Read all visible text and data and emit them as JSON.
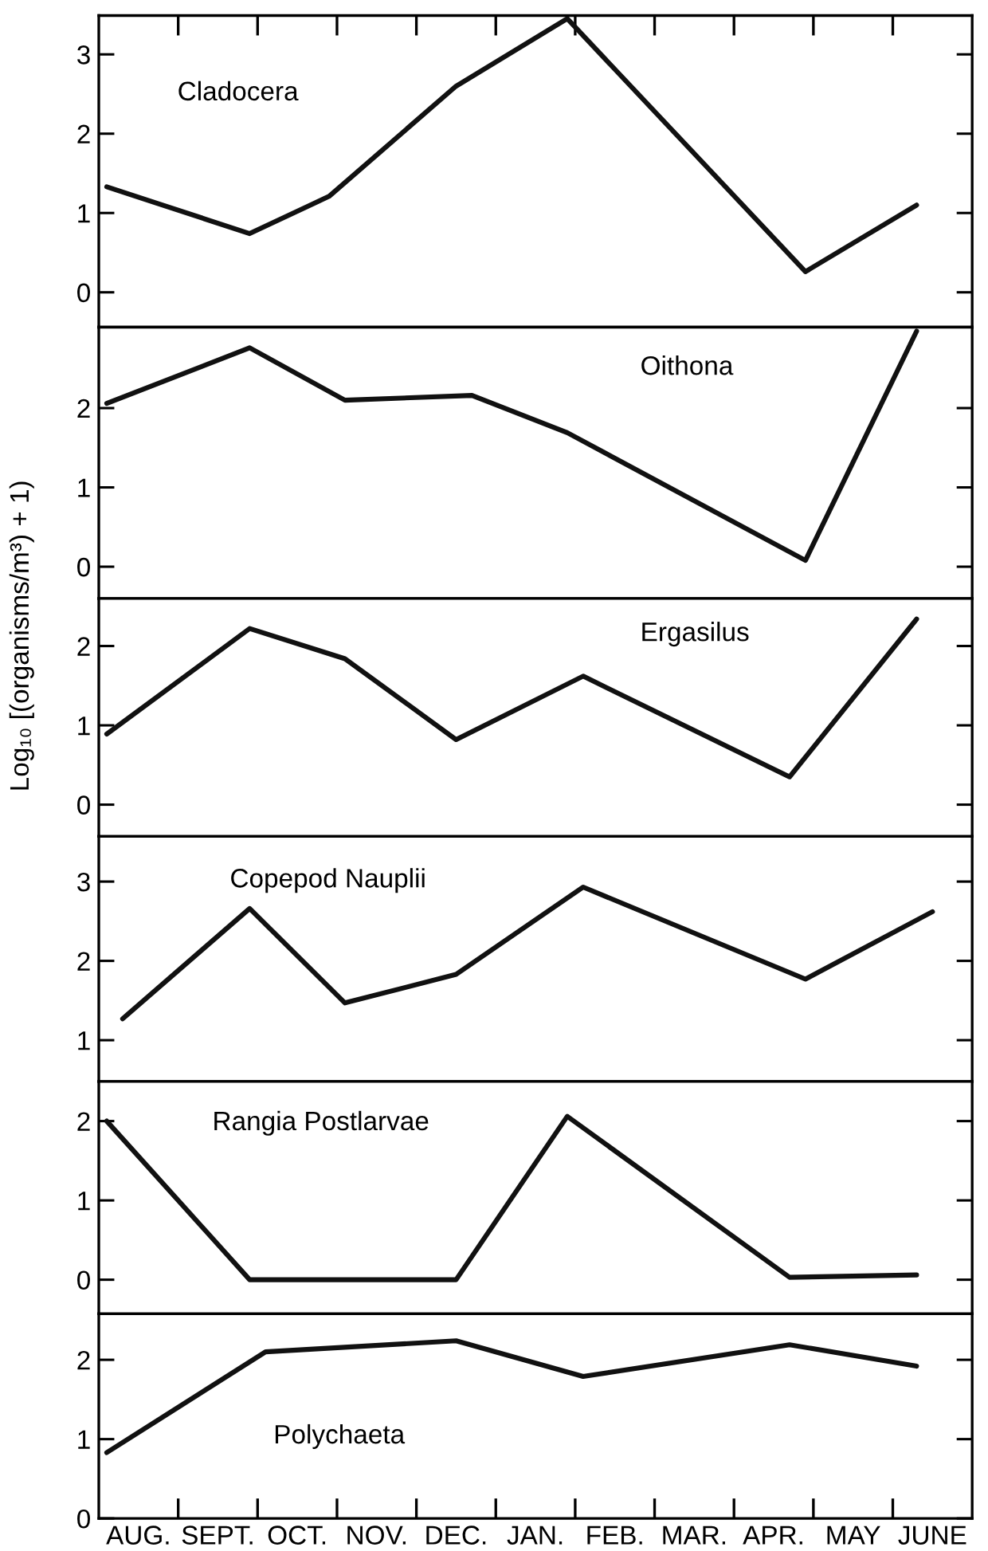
{
  "chart_data": [
    {
      "type": "line",
      "title": "Cladocera",
      "ylim": [
        -0.44,
        3.49
      ],
      "yticks": [
        0,
        1,
        2,
        3
      ],
      "tick_labels": "y",
      "color": "#111111",
      "values": [
        1.33,
        null,
        null,
        null,
        null,
        null,
        null,
        null,
        null,
        0.74,
        null,
        null,
        null,
        null,
        1.21,
        null,
        null,
        null,
        null,
        null,
        null,
        null,
        2.6,
        null,
        null,
        null,
        null,
        null,
        null,
        3.45,
        null,
        null,
        null,
        null,
        null,
        null,
        null,
        null,
        null,
        null,
        null,
        null,
        null,
        null,
        0.26,
        null,
        null,
        null,
        null,
        null,
        null,
        1.1,
        null,
        null,
        null
      ]
    },
    {
      "type": "line",
      "title": "Oithona",
      "ylim": [
        -0.4,
        3.02
      ],
      "yticks": [
        0,
        1,
        2
      ],
      "tick_labels": "y",
      "color": "#111111",
      "values": [
        2.06,
        null,
        null,
        null,
        null,
        null,
        null,
        null,
        null,
        2.76,
        null,
        null,
        null,
        null,
        null,
        2.1,
        null,
        null,
        null,
        null,
        null,
        null,
        null,
        2.16,
        null,
        null,
        null,
        null,
        null,
        1.69,
        null,
        null,
        null,
        null,
        null,
        null,
        null,
        null,
        null,
        null,
        null,
        null,
        null,
        null,
        0.08,
        null,
        null,
        null,
        null,
        null,
        null,
        2.97,
        null,
        null,
        null
      ]
    },
    {
      "type": "line",
      "title": "Ergasilus",
      "ylim": [
        -0.4,
        2.6
      ],
      "yticks": [
        0,
        1,
        2
      ],
      "tick_labels": "y",
      "color": "#111111",
      "ylabel": "Log₁₀ [(organisms/m³) + 1)",
      "values": [
        0.89,
        null,
        null,
        null,
        null,
        null,
        null,
        null,
        null,
        2.22,
        null,
        null,
        null,
        null,
        null,
        1.84,
        null,
        null,
        null,
        null,
        null,
        null,
        0.82,
        null,
        null,
        null,
        null,
        null,
        null,
        null,
        1.62,
        null,
        null,
        null,
        null,
        null,
        null,
        null,
        null,
        null,
        null,
        null,
        null,
        0.35,
        null,
        null,
        null,
        null,
        null,
        null,
        null,
        2.34,
        null,
        null,
        null
      ]
    },
    {
      "type": "line",
      "title": "Copepod Nauplii",
      "ylim": [
        0.48,
        3.57
      ],
      "yticks": [
        1,
        2,
        3
      ],
      "tick_labels": "y",
      "color": "#111111",
      "values": [
        null,
        1.27,
        null,
        null,
        null,
        null,
        null,
        null,
        null,
        2.66,
        null,
        null,
        null,
        null,
        null,
        1.47,
        null,
        null,
        null,
        null,
        null,
        null,
        1.83,
        null,
        null,
        null,
        null,
        null,
        null,
        null,
        2.93,
        null,
        null,
        null,
        null,
        null,
        null,
        null,
        null,
        null,
        null,
        null,
        null,
        null,
        1.77,
        null,
        null,
        null,
        null,
        null,
        null,
        null,
        2.62,
        null,
        null
      ]
    },
    {
      "type": "line",
      "title": "Rangia Postlarvae",
      "ylim": [
        -0.43,
        2.5
      ],
      "yticks": [
        0,
        1,
        2
      ],
      "tick_labels": "y",
      "color": "#111111",
      "values": [
        2.0,
        null,
        null,
        null,
        null,
        null,
        null,
        null,
        null,
        0.0,
        null,
        null,
        null,
        null,
        null,
        null,
        null,
        null,
        null,
        null,
        null,
        null,
        0.0,
        null,
        null,
        null,
        null,
        null,
        null,
        2.06,
        null,
        null,
        null,
        null,
        null,
        null,
        null,
        null,
        null,
        null,
        null,
        null,
        null,
        0.03,
        null,
        null,
        null,
        null,
        null,
        null,
        null,
        0.06,
        null,
        null,
        null
      ]
    },
    {
      "type": "line",
      "title": "Polychaeta",
      "ylim": [
        0,
        2.58
      ],
      "yticks": [
        0,
        1,
        2
      ],
      "color": "#111111",
      "categories": [
        null,
        null,
        "AUG.",
        null,
        null,
        null,
        null,
        "SEPT.",
        null,
        null,
        null,
        null,
        "OCT.",
        null,
        null,
        null,
        null,
        "NOV.",
        null,
        null,
        null,
        null,
        "DEC.",
        null,
        null,
        null,
        null,
        "JAN.",
        null,
        null,
        null,
        null,
        "FEB.",
        null,
        null,
        null,
        null,
        "MAR.",
        null,
        null,
        null,
        null,
        "APR.",
        null,
        null,
        null,
        null,
        "MAY",
        null,
        null,
        null,
        null,
        "JUNE",
        null,
        null
      ],
      "values": [
        0.83,
        null,
        null,
        null,
        null,
        null,
        null,
        null,
        null,
        null,
        2.1,
        null,
        null,
        null,
        null,
        null,
        null,
        null,
        null,
        null,
        null,
        null,
        2.24,
        null,
        null,
        null,
        null,
        null,
        null,
        null,
        1.79,
        null,
        null,
        null,
        null,
        null,
        null,
        null,
        null,
        null,
        null,
        null,
        null,
        2.19,
        null,
        null,
        null,
        null,
        null,
        null,
        null,
        1.92,
        null,
        null,
        null
      ]
    }
  ]
}
